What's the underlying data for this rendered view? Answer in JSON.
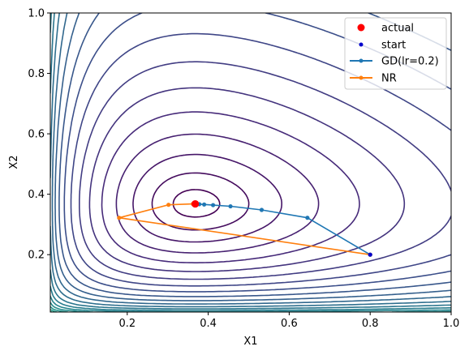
{
  "chart_data": {
    "type": "line",
    "title": "",
    "xlabel": "X1",
    "ylabel": "X2",
    "xlim": [
      0.01,
      1.0
    ],
    "ylim": [
      0.01,
      1.0
    ],
    "grid": false,
    "legend_position": "top-right",
    "x_ticks": [
      0.2,
      0.4,
      0.6,
      0.8,
      1.0
    ],
    "y_ticks": [
      0.2,
      0.4,
      0.6,
      0.8,
      1.0
    ],
    "x_tick_labels": [
      "0.2",
      "0.4",
      "0.6",
      "0.8",
      "1.0"
    ],
    "y_tick_labels": [
      "0.2",
      "0.4",
      "0.6",
      "0.8",
      "1.0"
    ],
    "background_contours": {
      "center": [
        0.368,
        0.368
      ],
      "colormap": "viridis",
      "colors": [
        "#440154",
        "#482878",
        "#3e4989",
        "#31688e",
        "#26828e",
        "#1f9e89",
        "#35b779",
        "#6ece58",
        "#b5de2b",
        "#fde725"
      ]
    },
    "series": [
      {
        "name": "actual",
        "kind": "marker",
        "color": "#ff0000",
        "x": [
          0.368
        ],
        "y": [
          0.368
        ]
      },
      {
        "name": "start",
        "kind": "marker",
        "color": "#0000cc",
        "x": [
          0.8
        ],
        "y": [
          0.2
        ]
      },
      {
        "name": "GD(lr=0.2)",
        "kind": "line",
        "color": "#1f77b4",
        "x": [
          0.8,
          0.645,
          0.532,
          0.455,
          0.412,
          0.39,
          0.378,
          0.372,
          0.369
        ],
        "y": [
          0.2,
          0.322,
          0.348,
          0.36,
          0.364,
          0.366,
          0.367,
          0.368,
          0.368
        ]
      },
      {
        "name": "NR",
        "kind": "line",
        "color": "#ff7f0e",
        "x": [
          0.8,
          0.18,
          0.302,
          0.362,
          0.368
        ],
        "y": [
          0.2,
          0.322,
          0.365,
          0.368,
          0.368
        ]
      }
    ]
  }
}
